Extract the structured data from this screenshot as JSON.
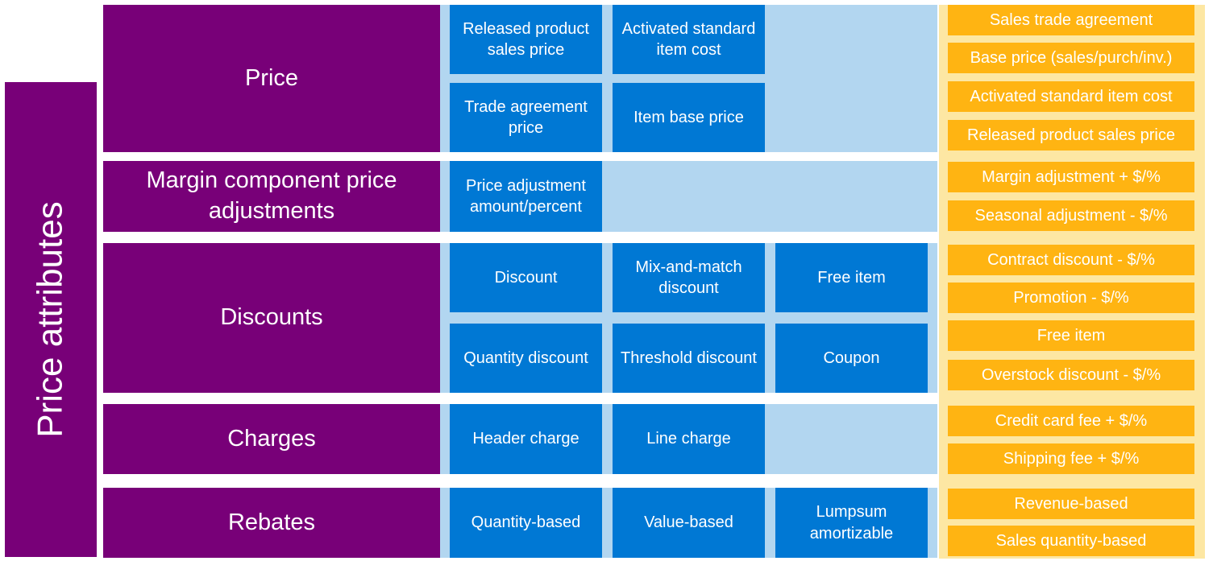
{
  "side_title": "Price attributes",
  "groups": [
    {
      "label": "Price",
      "mechanisms": [
        "Released product sales price",
        "Activated standard item cost",
        "Trade agreement price",
        "Item base price"
      ],
      "examples": [
        "Sales trade agreement",
        "Base price (sales/purch/inv.)",
        "Activated standard item cost",
        "Released product sales price"
      ]
    },
    {
      "label": "Margin component price adjustments",
      "mechanisms": [
        "Price adjustment amount/percent"
      ],
      "examples": [
        "Margin adjustment + $/%",
        "Seasonal adjustment - $/%"
      ]
    },
    {
      "label": "Discounts",
      "mechanisms": [
        "Discount",
        "Mix-and-match discount",
        "Free item",
        "Quantity discount",
        "Threshold discount",
        "Coupon"
      ],
      "examples": [
        "Contract discount - $/%",
        "Promotion - $/%",
        "Free item",
        "Overstock discount - $/%"
      ]
    },
    {
      "label": "Charges",
      "mechanisms": [
        "Header charge",
        "Line charge"
      ],
      "examples": [
        "Credit card fee + $/%",
        "Shipping fee + $/%"
      ]
    },
    {
      "label": "Rebates",
      "mechanisms": [
        "Quantity-based",
        "Value-based",
        "Lumpsum amortizable"
      ],
      "examples": [
        "Revenue-based",
        "Sales quantity-based"
      ]
    }
  ],
  "colors": {
    "purple": "#780078",
    "blue": "#0078d4",
    "light_blue": "#b2d6f0",
    "orange": "#ffb412",
    "light_yellow": "#fde7a3"
  }
}
